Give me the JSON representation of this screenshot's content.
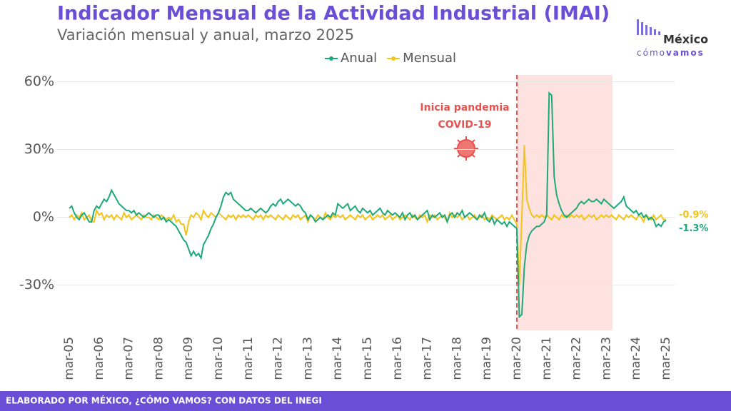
{
  "chart_data": {
    "type": "line",
    "title": "Indicador Mensual de la Actividad Industrial (IMAI)",
    "subtitle": "Variación mensual y anual, marzo 2025",
    "annotation": [
      "Inicia pandemia",
      "COVID-19"
    ],
    "source": "ELABORADO POR MÉXICO, ¿CÓMO VAMOS? CON DATOS DEL INEGI",
    "logo": {
      "name": "México",
      "tagline_a": "cómo",
      "tagline_b": "vamos"
    },
    "ylim": [
      -50,
      63
    ],
    "yticks": [
      {
        "value": -30,
        "label": "-30%"
      },
      {
        "value": 0,
        "label": "0%"
      },
      {
        "value": 30,
        "label": "30%"
      },
      {
        "value": 60,
        "label": "60%"
      }
    ],
    "grid": true,
    "legend": "top",
    "categories": [
      "mar-05",
      null,
      null,
      null,
      null,
      null,
      null,
      null,
      null,
      null,
      null,
      null,
      "mar-06",
      null,
      null,
      null,
      null,
      null,
      null,
      null,
      null,
      null,
      null,
      null,
      "mar-07",
      null,
      null,
      null,
      null,
      null,
      null,
      null,
      null,
      null,
      null,
      null,
      "mar-08",
      null,
      null,
      null,
      null,
      null,
      null,
      null,
      null,
      null,
      null,
      null,
      "mar-09",
      null,
      null,
      null,
      null,
      null,
      null,
      null,
      null,
      null,
      null,
      null,
      "mar-10",
      null,
      null,
      null,
      null,
      null,
      null,
      null,
      null,
      null,
      null,
      null,
      "mar-11",
      null,
      null,
      null,
      null,
      null,
      null,
      null,
      null,
      null,
      null,
      null,
      "mar-12",
      null,
      null,
      null,
      null,
      null,
      null,
      null,
      null,
      null,
      null,
      null,
      "mar-13",
      null,
      null,
      null,
      null,
      null,
      null,
      null,
      null,
      null,
      null,
      null,
      "mar-14",
      null,
      null,
      null,
      null,
      null,
      null,
      null,
      null,
      null,
      null,
      null,
      "mar-15",
      null,
      null,
      null,
      null,
      null,
      null,
      null,
      null,
      null,
      null,
      null,
      "mar-16",
      null,
      null,
      null,
      null,
      null,
      null,
      null,
      null,
      null,
      null,
      null,
      "mar-17",
      null,
      null,
      null,
      null,
      null,
      null,
      null,
      null,
      null,
      null,
      null,
      "mar-18",
      null,
      null,
      null,
      null,
      null,
      null,
      null,
      null,
      null,
      null,
      null,
      "mar-19",
      null,
      null,
      null,
      null,
      null,
      null,
      null,
      null,
      null,
      null,
      null,
      "mar-20",
      null,
      null,
      null,
      null,
      null,
      null,
      null,
      null,
      null,
      null,
      null,
      "mar-21",
      null,
      null,
      null,
      null,
      null,
      null,
      null,
      null,
      null,
      null,
      null,
      "mar-22",
      null,
      null,
      null,
      null,
      null,
      null,
      null,
      null,
      null,
      null,
      null,
      "mar-23",
      null,
      null,
      null,
      null,
      null,
      null,
      null,
      null,
      null,
      null,
      null,
      "mar-24",
      null,
      null,
      null,
      null,
      null,
      null,
      null,
      null,
      null,
      null,
      null,
      "mar-25"
    ],
    "series": [
      {
        "name": "Anual",
        "color": "#1fa97a",
        "values": [
          4,
          5,
          2,
          0,
          -1,
          1,
          2,
          0,
          -2,
          -2,
          3,
          5,
          4,
          6,
          8,
          7,
          9,
          12,
          10,
          8,
          6,
          5,
          4,
          3,
          3,
          2,
          3,
          1,
          2,
          1,
          0,
          1,
          2,
          1,
          0,
          1,
          1,
          -1,
          0,
          -2,
          -1,
          -2,
          -3,
          -4,
          -6,
          -8,
          -10,
          -11,
          -14,
          -17,
          -15,
          -17,
          -16,
          -18,
          -12,
          -10,
          -8,
          -5,
          -3,
          0,
          2,
          5,
          9,
          11,
          10,
          11,
          8,
          7,
          6,
          5,
          4,
          3,
          3,
          4,
          3,
          2,
          3,
          4,
          3,
          2,
          3,
          5,
          6,
          5,
          7,
          8,
          6,
          7,
          8,
          7,
          6,
          5,
          6,
          5,
          3,
          2,
          -1,
          1,
          0,
          -2,
          -1,
          0,
          -1,
          0,
          1,
          0,
          2,
          1,
          6,
          5,
          4,
          5,
          6,
          3,
          4,
          5,
          3,
          2,
          4,
          3,
          2,
          3,
          1,
          2,
          3,
          4,
          2,
          1,
          3,
          2,
          1,
          2,
          1,
          0,
          2,
          -1,
          1,
          2,
          0,
          1,
          -1,
          0,
          1,
          2,
          3,
          -1,
          1,
          0,
          1,
          2,
          0,
          1,
          -2,
          1,
          2,
          0,
          2,
          1,
          3,
          0,
          1,
          2,
          1,
          0,
          -1,
          1,
          0,
          2,
          -1,
          -2,
          0,
          -3,
          -1,
          -2,
          -3,
          -2,
          -4,
          -2,
          -3,
          -4,
          -5,
          -44,
          -43,
          -22,
          -12,
          -8,
          -6,
          -5,
          -4,
          -4,
          -3,
          -2,
          1,
          55,
          54,
          18,
          10,
          6,
          3,
          1,
          0,
          1,
          2,
          3,
          4,
          6,
          7,
          6,
          7,
          8,
          7,
          7,
          8,
          7,
          6,
          8,
          7,
          6,
          5,
          4,
          5,
          6,
          7,
          9,
          5,
          4,
          3,
          2,
          3,
          1,
          2,
          0,
          1,
          -1,
          0,
          -1,
          -4,
          -3,
          -4,
          -2,
          -1.3
        ],
        "value_labels": [
          null,
          null,
          null,
          null,
          null,
          null,
          null,
          null,
          null,
          null,
          null,
          null,
          null,
          null,
          null,
          null,
          null,
          null,
          null,
          null,
          null,
          null,
          null,
          null,
          null,
          null,
          null,
          null,
          null,
          null,
          null,
          null,
          null,
          null,
          null,
          null,
          null,
          null,
          null,
          null,
          null,
          null,
          null,
          null,
          null,
          null,
          null,
          null,
          null,
          null,
          null,
          null,
          null,
          null,
          null,
          null,
          null,
          null,
          null,
          null,
          null,
          null,
          null,
          null,
          null,
          null,
          null,
          null,
          null,
          null,
          null,
          null,
          null,
          null,
          null,
          null,
          null,
          null,
          null,
          null,
          null,
          null,
          null,
          null,
          null,
          null,
          null,
          null,
          null,
          null,
          null,
          null,
          null,
          null,
          null,
          null,
          null,
          null,
          null,
          null,
          null,
          null,
          null,
          null,
          null,
          null,
          null,
          null,
          null,
          null,
          null,
          null,
          null,
          null,
          null,
          null,
          null,
          null,
          null,
          null,
          null,
          null,
          null,
          null,
          null,
          null,
          null,
          null,
          null,
          null,
          null,
          null,
          null,
          null,
          null,
          null,
          null,
          null,
          null,
          null,
          null,
          null,
          null,
          null,
          null,
          null,
          null,
          null,
          null,
          null,
          null,
          null,
          null,
          null,
          null,
          null,
          null,
          null,
          null,
          null,
          null,
          null,
          null,
          null,
          null,
          null,
          null,
          null,
          null,
          null,
          null,
          null,
          null,
          null,
          null,
          null,
          null,
          null,
          null,
          null,
          null,
          null,
          null,
          null,
          null,
          null,
          null,
          null,
          null,
          null,
          null,
          null,
          null,
          null,
          null,
          null,
          null,
          null,
          null,
          null,
          null,
          null,
          null,
          null,
          null,
          null,
          null,
          null,
          null,
          null,
          null,
          null,
          null,
          null,
          null,
          null,
          null,
          null,
          null,
          null,
          null,
          null,
          null,
          null,
          null,
          null,
          null,
          null,
          null,
          null,
          null,
          null,
          null,
          null,
          null,
          null,
          null,
          null,
          null,
          null,
          "-1.3%"
        ]
      },
      {
        "name": "Mensual",
        "color": "#f3c41a",
        "values": [
          0,
          1,
          -1,
          1,
          0,
          2,
          -1,
          0,
          1,
          -2,
          -2,
          3,
          1,
          2,
          -1,
          1,
          0,
          1,
          -1,
          1,
          0,
          -1,
          2,
          0,
          1,
          -1,
          0,
          1,
          0,
          -1,
          1,
          0,
          0,
          -1,
          1,
          0,
          -1,
          1,
          0,
          -1,
          0,
          -1,
          1,
          -2,
          -1,
          -3,
          -3,
          -8,
          -2,
          1,
          0,
          2,
          1,
          -1,
          3,
          1,
          0,
          2,
          1,
          0,
          2,
          1,
          0,
          -1,
          1,
          0,
          1,
          -1,
          1,
          0,
          1,
          0,
          1,
          0,
          -1,
          1,
          0,
          1,
          -1,
          1,
          0,
          1,
          0,
          -1,
          1,
          0,
          -1,
          1,
          0,
          -1,
          1,
          0,
          1,
          -1,
          0,
          1,
          -2,
          1,
          0,
          -1,
          1,
          0,
          -1,
          2,
          0,
          -1,
          1,
          0,
          1,
          0,
          1,
          -1,
          0,
          1,
          0,
          -1,
          1,
          0,
          1,
          -1,
          0,
          1,
          -1,
          0,
          1,
          0,
          1,
          -1,
          0,
          1,
          -1,
          0,
          1,
          -1,
          0,
          1,
          0,
          -1,
          1,
          0,
          -1,
          1,
          0,
          1,
          -2,
          1,
          0,
          1,
          -1,
          0,
          1,
          0,
          -2,
          2,
          0,
          1,
          0,
          1,
          -1,
          0,
          1,
          -1,
          0,
          1,
          -1,
          0,
          1,
          -1,
          0,
          -1,
          1,
          0,
          -1,
          0,
          1,
          -1,
          0,
          -1,
          1,
          -1,
          -3,
          -30,
          0,
          32,
          8,
          4,
          1,
          0,
          1,
          0,
          1,
          0,
          1,
          0,
          -1,
          1,
          0,
          -1,
          1,
          0,
          1,
          0,
          1,
          0,
          1,
          0,
          1,
          -1,
          0,
          1,
          0,
          1,
          -1,
          0,
          1,
          0,
          1,
          0,
          1,
          0,
          -1,
          1,
          0,
          -1,
          1,
          0,
          1,
          0,
          -1,
          1,
          0,
          -2,
          1,
          0,
          -1,
          1,
          -1,
          0,
          1,
          -1,
          -0.9
        ],
        "value_labels": [
          null,
          null,
          null,
          null,
          null,
          null,
          null,
          null,
          null,
          null,
          null,
          null,
          null,
          null,
          null,
          null,
          null,
          null,
          null,
          null,
          null,
          null,
          null,
          null,
          null,
          null,
          null,
          null,
          null,
          null,
          null,
          null,
          null,
          null,
          null,
          null,
          null,
          null,
          null,
          null,
          null,
          null,
          null,
          null,
          null,
          null,
          null,
          null,
          null,
          null,
          null,
          null,
          null,
          null,
          null,
          null,
          null,
          null,
          null,
          null,
          null,
          null,
          null,
          null,
          null,
          null,
          null,
          null,
          null,
          null,
          null,
          null,
          null,
          null,
          null,
          null,
          null,
          null,
          null,
          null,
          null,
          null,
          null,
          null,
          null,
          null,
          null,
          null,
          null,
          null,
          null,
          null,
          null,
          null,
          null,
          null,
          null,
          null,
          null,
          null,
          null,
          null,
          null,
          null,
          null,
          null,
          null,
          null,
          null,
          null,
          null,
          null,
          null,
          null,
          null,
          null,
          null,
          null,
          null,
          null,
          null,
          null,
          null,
          null,
          null,
          null,
          null,
          null,
          null,
          null,
          null,
          null,
          null,
          null,
          null,
          null,
          null,
          null,
          null,
          null,
          null,
          null,
          null,
          null,
          null,
          null,
          null,
          null,
          null,
          null,
          null,
          null,
          null,
          null,
          null,
          null,
          null,
          null,
          null,
          null,
          null,
          null,
          null,
          null,
          null,
          null,
          null,
          null,
          null,
          null,
          null,
          null,
          null,
          null,
          null,
          null,
          null,
          null,
          null,
          null,
          null,
          null,
          null,
          null,
          null,
          null,
          null,
          null,
          null,
          null,
          null,
          null,
          null,
          null,
          null,
          null,
          null,
          null,
          null,
          null,
          null,
          null,
          null,
          null,
          null,
          null,
          null,
          null,
          null,
          null,
          null,
          null,
          null,
          null,
          null,
          null,
          null,
          null,
          null,
          null,
          null,
          null,
          null,
          null,
          null,
          null,
          null,
          null,
          null,
          null,
          null,
          null,
          null,
          null,
          null,
          null,
          null,
          null,
          null,
          null,
          "-0.9%"
        ]
      }
    ]
  }
}
